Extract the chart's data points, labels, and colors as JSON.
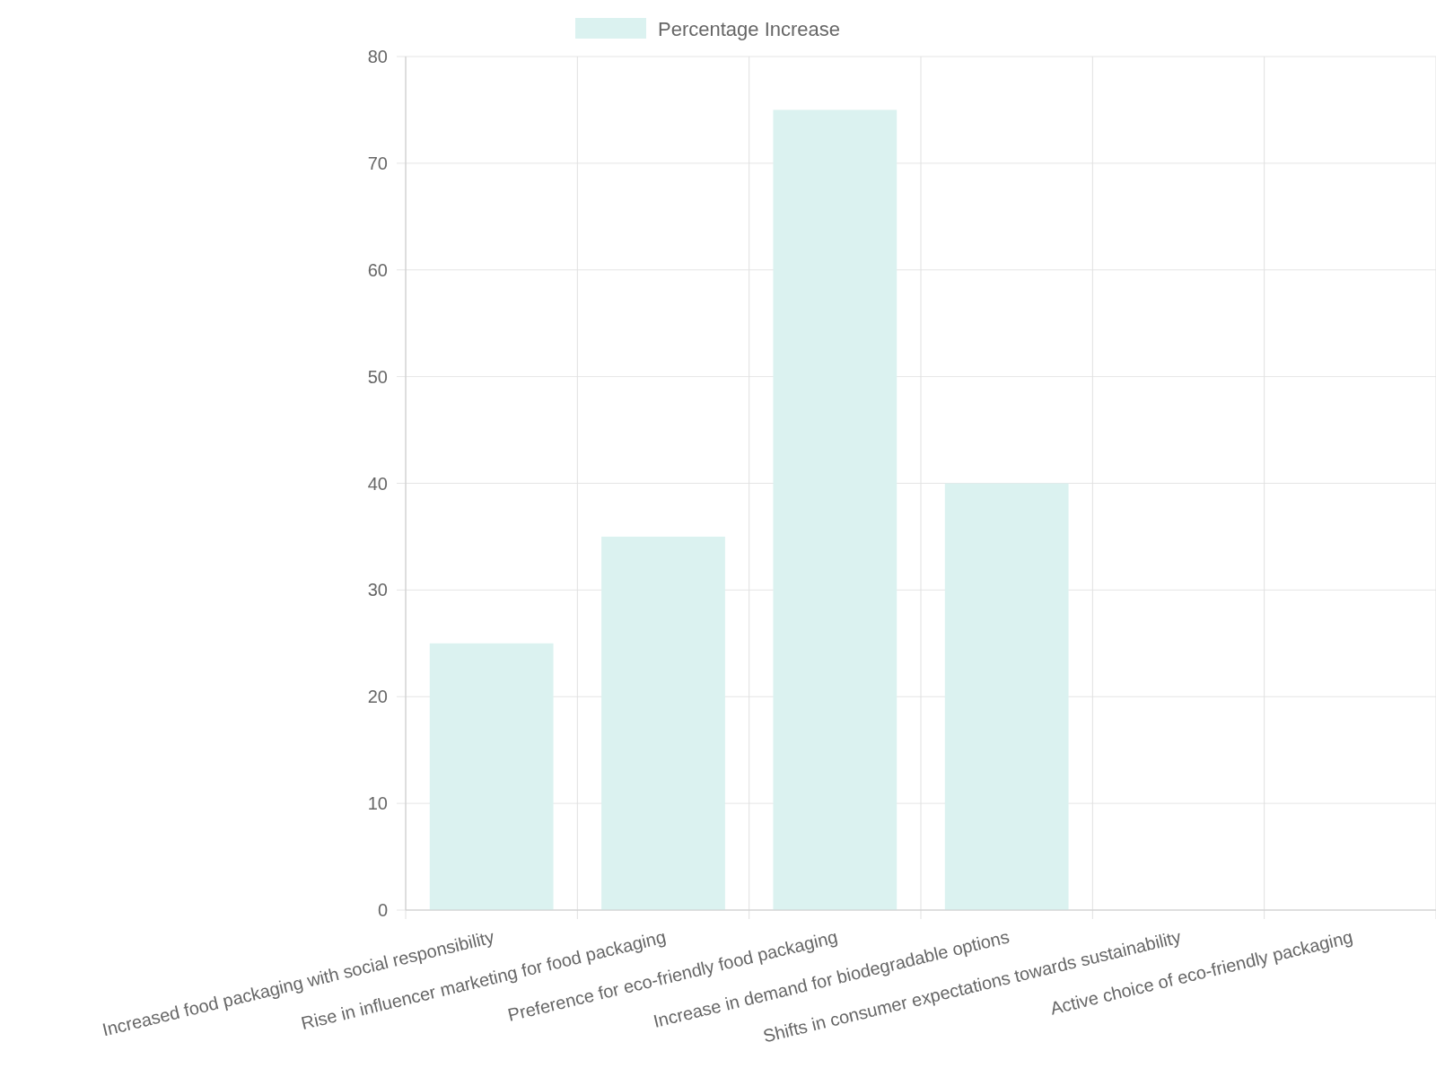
{
  "chart_data": {
    "type": "bar",
    "categories": [
      "Increased food packaging with social responsibility",
      "Rise in influencer marketing for food packaging",
      "Preference for eco-friendly food packaging",
      "Increase in demand for biodegradable options",
      "Shifts in consumer expectations towards sustainability",
      "Active choice of eco-friendly packaging"
    ],
    "series": [
      {
        "name": "Percentage Increase",
        "color": "#dbf2f0",
        "values": [
          25,
          35,
          75,
          40,
          null,
          null
        ]
      }
    ],
    "ylim": [
      0,
      80
    ],
    "yticks": [
      0,
      10,
      20,
      30,
      40,
      50,
      60,
      70,
      80
    ],
    "grid": true,
    "legend": "top"
  }
}
